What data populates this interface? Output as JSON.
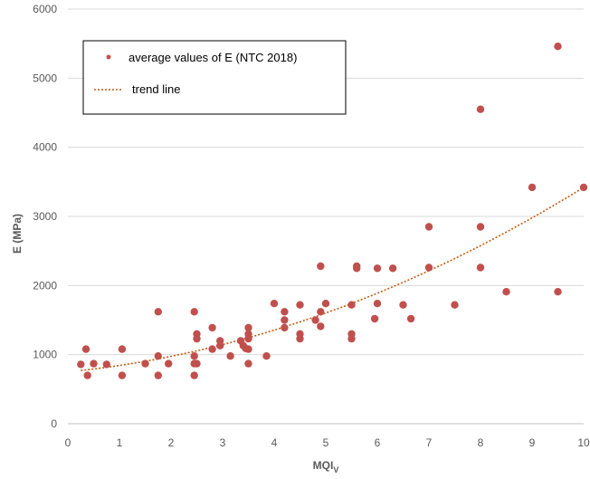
{
  "chart_data": {
    "type": "scatter",
    "xlabel": "MQI",
    "xlabel_sub": "V",
    "ylabel": "E   (MPa)",
    "xlim": [
      0,
      10
    ],
    "ylim": [
      0,
      6000
    ],
    "x_ticks": [
      "0",
      "1",
      "2",
      "3",
      "4",
      "5",
      "6",
      "7",
      "8",
      "9",
      "10"
    ],
    "y_ticks": [
      "0",
      "1000",
      "2000",
      "3000",
      "4000",
      "5000",
      "6000"
    ],
    "grid": "horizontal",
    "legend_position": "top-left",
    "series": [
      {
        "name": "average values of E (NTC 2018)",
        "color": "#c0504d",
        "points": [
          [
            0.25,
            860
          ],
          [
            0.35,
            1080
          ],
          [
            0.38,
            700
          ],
          [
            0.5,
            870
          ],
          [
            0.75,
            860
          ],
          [
            1.05,
            1080
          ],
          [
            1.05,
            700
          ],
          [
            1.5,
            870
          ],
          [
            1.75,
            1620
          ],
          [
            1.75,
            980
          ],
          [
            1.75,
            700
          ],
          [
            1.95,
            870
          ],
          [
            2.45,
            1620
          ],
          [
            2.45,
            980
          ],
          [
            2.45,
            870
          ],
          [
            2.45,
            700
          ],
          [
            2.5,
            1300
          ],
          [
            2.5,
            1230
          ],
          [
            2.5,
            870
          ],
          [
            2.8,
            1390
          ],
          [
            2.8,
            1080
          ],
          [
            2.95,
            1200
          ],
          [
            2.95,
            1130
          ],
          [
            3.15,
            980
          ],
          [
            3.35,
            1200
          ],
          [
            3.4,
            1130
          ],
          [
            3.45,
            1090
          ],
          [
            3.5,
            1390
          ],
          [
            3.5,
            1300
          ],
          [
            3.5,
            1230
          ],
          [
            3.5,
            1080
          ],
          [
            3.5,
            870
          ],
          [
            3.85,
            980
          ],
          [
            4.0,
            1740
          ],
          [
            4.2,
            1620
          ],
          [
            4.2,
            1500
          ],
          [
            4.2,
            1390
          ],
          [
            4.5,
            1720
          ],
          [
            4.5,
            1300
          ],
          [
            4.5,
            1230
          ],
          [
            4.8,
            1500
          ],
          [
            4.9,
            2280
          ],
          [
            4.9,
            1620
          ],
          [
            4.9,
            1410
          ],
          [
            5.0,
            1740
          ],
          [
            5.5,
            1720
          ],
          [
            5.5,
            1300
          ],
          [
            5.5,
            1230
          ],
          [
            5.6,
            2280
          ],
          [
            5.6,
            2250
          ],
          [
            5.95,
            1520
          ],
          [
            6.0,
            2250
          ],
          [
            6.0,
            1740
          ],
          [
            6.3,
            2250
          ],
          [
            6.5,
            1720
          ],
          [
            6.65,
            1520
          ],
          [
            7.0,
            2850
          ],
          [
            7.0,
            2260
          ],
          [
            7.5,
            1720
          ],
          [
            8.0,
            4550
          ],
          [
            8.0,
            2850
          ],
          [
            8.0,
            2260
          ],
          [
            8.5,
            1910
          ],
          [
            9.0,
            3420
          ],
          [
            9.5,
            5460
          ],
          [
            9.5,
            1910
          ],
          [
            10.0,
            3420
          ]
        ]
      },
      {
        "name": "trend line",
        "kind": "polynomial-trend",
        "color": "#c55a11",
        "coefficients": [
          19.3,
          74,
          750
        ],
        "x_range": [
          0.25,
          10
        ]
      }
    ]
  }
}
